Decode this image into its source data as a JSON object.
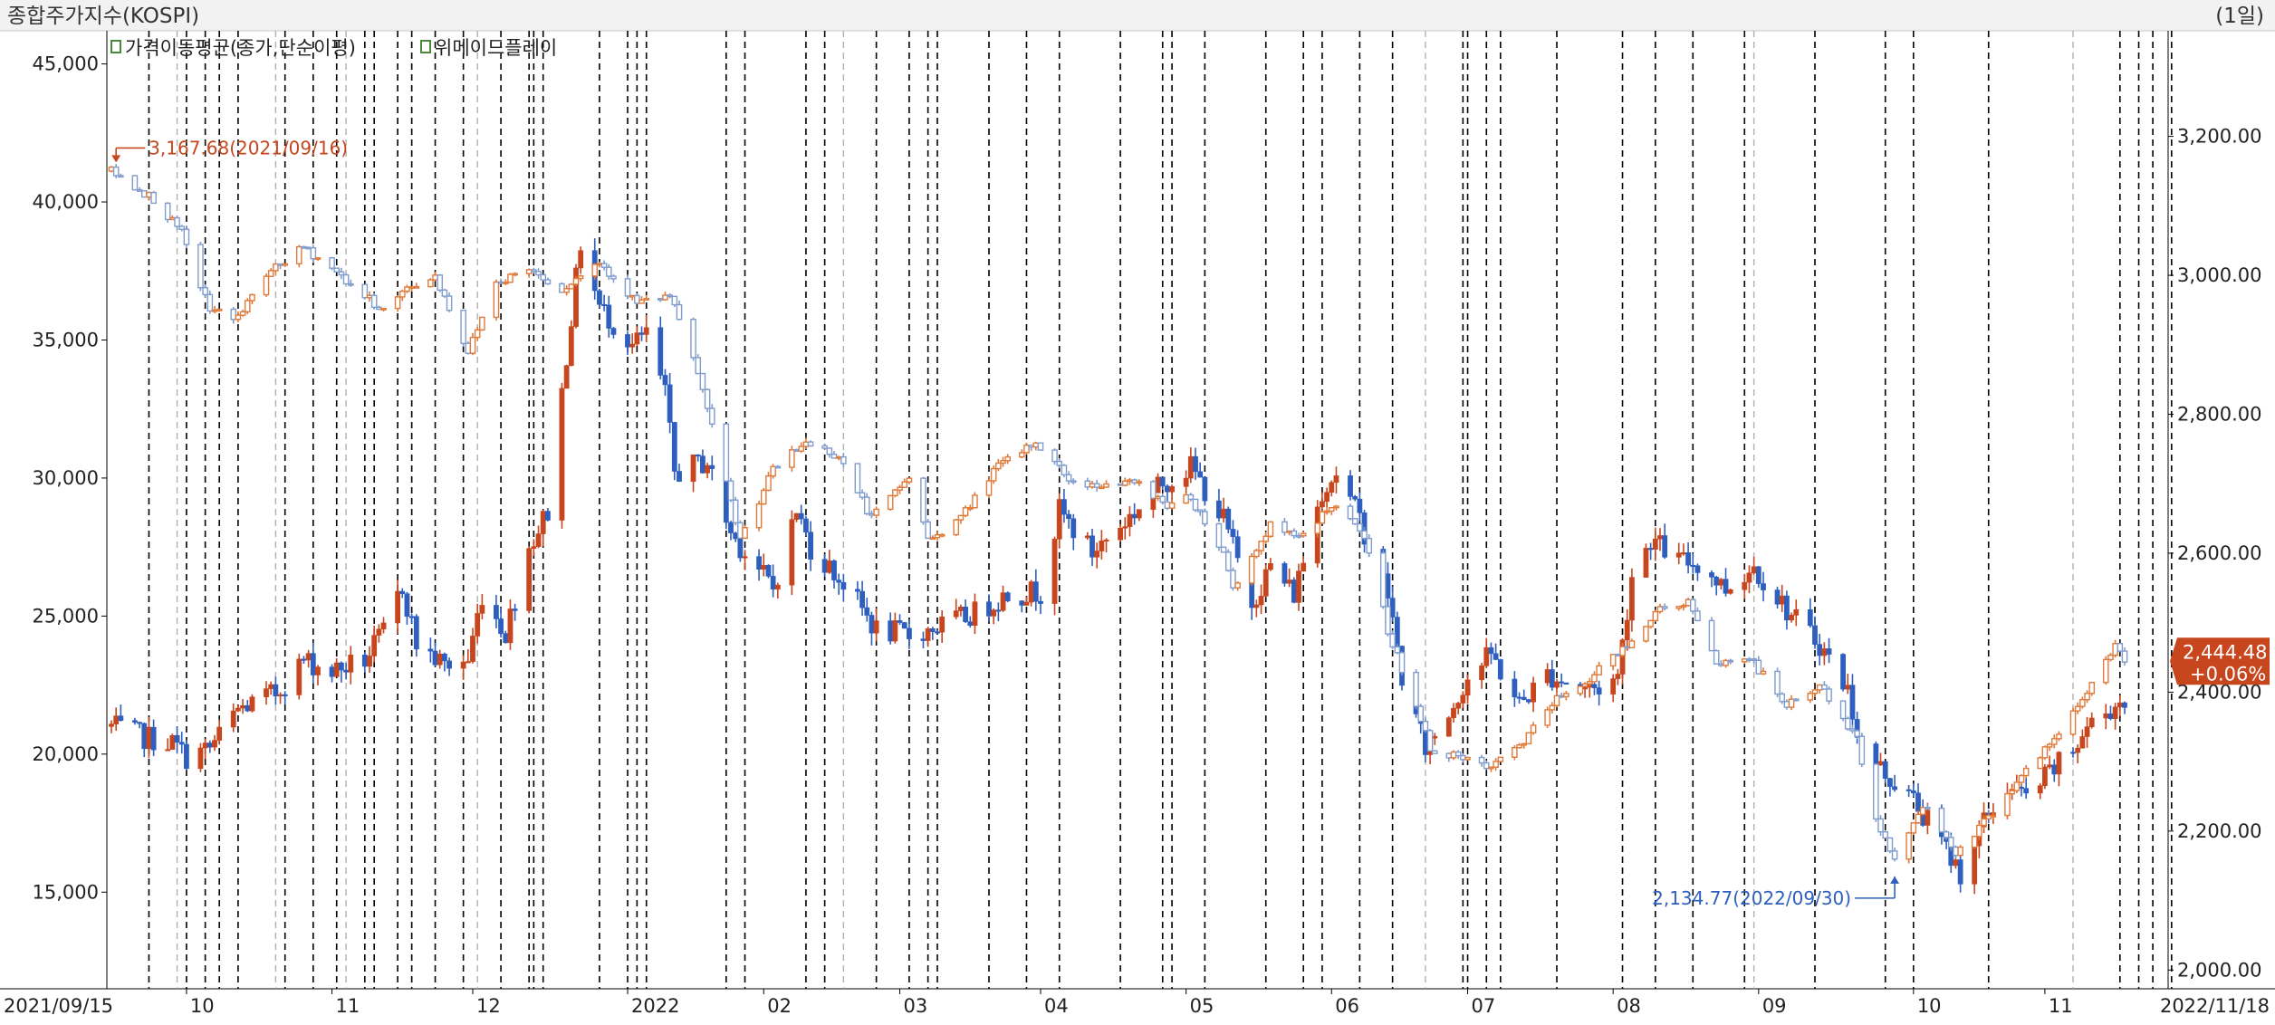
{
  "header": {
    "title": "종합주가지수(KOSPI)",
    "period": "(1일)"
  },
  "legend": [
    {
      "label": "가격이동평균(종가,단순이평)",
      "color": "#4a8a3a",
      "icon": "legend-square-icon"
    },
    {
      "label": "위메이드플레이",
      "color": "#4a8a3a",
      "icon": "legend-square-icon"
    }
  ],
  "colors": {
    "up": "#c8461e",
    "down": "#2e5fbf",
    "up_hollow": "#e07a3a",
    "down_hollow": "#7f9ccc",
    "vline_dark": "#000000",
    "vline_light": "#b0b0b0",
    "annotation_max": "#c8461e",
    "annotation_min": "#2e5fbf",
    "badge_bg": "#c8461e"
  },
  "chart_data": {
    "type": "candlestick",
    "x_start_label": "2021/09/15",
    "x_end_label": "2022/11/18",
    "month_ticks": [
      {
        "label": "10",
        "date": "2021-10-01"
      },
      {
        "label": "11",
        "date": "2021-11-01"
      },
      {
        "label": "12",
        "date": "2021-12-01"
      },
      {
        "label": "2022",
        "date": "2022-01-03"
      },
      {
        "label": "02",
        "date": "2022-02-01"
      },
      {
        "label": "03",
        "date": "2022-03-02"
      },
      {
        "label": "04",
        "date": "2022-04-01"
      },
      {
        "label": "05",
        "date": "2022-05-02"
      },
      {
        "label": "06",
        "date": "2022-06-02"
      },
      {
        "label": "07",
        "date": "2022-07-01"
      },
      {
        "label": "08",
        "date": "2022-08-01"
      },
      {
        "label": "09",
        "date": "2022-09-01"
      },
      {
        "label": "10",
        "date": "2022-10-04"
      },
      {
        "label": "11",
        "date": "2022-11-01"
      }
    ],
    "left_axis": {
      "ticks": [
        "45,000",
        "40,000",
        "35,000",
        "30,000",
        "25,000",
        "20,000",
        "15,000"
      ],
      "values": [
        45000,
        40000,
        35000,
        30000,
        25000,
        20000,
        15000
      ],
      "ylim": [
        11500,
        46200
      ]
    },
    "right_axis": {
      "ticks": [
        "3,200.00",
        "3,000.00",
        "2,800.00",
        "2,600.00",
        "2,400.00",
        "2,200.00",
        "2,000.00"
      ],
      "values": [
        3200,
        3000,
        2800,
        2600,
        2400,
        2200,
        2000
      ],
      "ylim": [
        1973,
        3352
      ]
    },
    "series": [
      {
        "name": "위메이드플레이",
        "axis": "left",
        "style": "solid candles",
        "waypoints": [
          [
            "2021-09-15",
            21000
          ],
          [
            "2021-09-20",
            20700
          ],
          [
            "2021-09-28",
            20400
          ],
          [
            "2021-10-01",
            19900
          ],
          [
            "2021-10-06",
            20200
          ],
          [
            "2021-10-12",
            21600
          ],
          [
            "2021-10-20",
            22200
          ],
          [
            "2021-10-26",
            23400
          ],
          [
            "2021-11-01",
            23000
          ],
          [
            "2021-11-08",
            23400
          ],
          [
            "2021-11-12",
            24400
          ],
          [
            "2021-11-16",
            26100
          ],
          [
            "2021-11-19",
            24000
          ],
          [
            "2021-11-25",
            23200
          ],
          [
            "2021-11-30",
            23400
          ],
          [
            "2021-12-03",
            25800
          ],
          [
            "2021-12-08",
            24400
          ],
          [
            "2021-12-13",
            27500
          ],
          [
            "2021-12-17",
            28800
          ],
          [
            "2021-12-21",
            34500
          ],
          [
            "2021-12-24",
            38500
          ],
          [
            "2021-12-28",
            36200
          ],
          [
            "2022-01-04",
            34800
          ],
          [
            "2022-01-07",
            35200
          ],
          [
            "2022-01-11",
            33000
          ],
          [
            "2022-01-13",
            30200
          ],
          [
            "2022-01-20",
            30600
          ],
          [
            "2022-01-25",
            28000
          ],
          [
            "2022-02-03",
            26000
          ],
          [
            "2022-02-08",
            28800
          ],
          [
            "2022-02-11",
            27500
          ],
          [
            "2022-02-18",
            26200
          ],
          [
            "2022-02-25",
            24500
          ],
          [
            "2022-03-04",
            24300
          ],
          [
            "2022-03-10",
            24600
          ],
          [
            "2022-03-18",
            25100
          ],
          [
            "2022-03-25",
            25800
          ],
          [
            "2022-04-01",
            25900
          ],
          [
            "2022-04-05",
            28800
          ],
          [
            "2022-04-12",
            27300
          ],
          [
            "2022-04-20",
            28600
          ],
          [
            "2022-04-27",
            29800
          ],
          [
            "2022-05-03",
            30400
          ],
          [
            "2022-05-10",
            28500
          ],
          [
            "2022-05-16",
            25500
          ],
          [
            "2022-05-20",
            26800
          ],
          [
            "2022-05-25",
            25800
          ],
          [
            "2022-05-31",
            29600
          ],
          [
            "2022-06-03",
            30200
          ],
          [
            "2022-06-08",
            28500
          ],
          [
            "2022-06-14",
            25800
          ],
          [
            "2022-06-17",
            22800
          ],
          [
            "2022-06-22",
            20200
          ],
          [
            "2022-06-27",
            21500
          ],
          [
            "2022-07-01",
            22800
          ],
          [
            "2022-07-06",
            23600
          ],
          [
            "2022-07-12",
            21800
          ],
          [
            "2022-07-18",
            22900
          ],
          [
            "2022-07-25",
            22400
          ],
          [
            "2022-07-29",
            22400
          ],
          [
            "2022-08-02",
            22800
          ],
          [
            "2022-08-05",
            26500
          ],
          [
            "2022-08-09",
            27800
          ],
          [
            "2022-08-15",
            27000
          ],
          [
            "2022-08-19",
            26900
          ],
          [
            "2022-08-25",
            26000
          ],
          [
            "2022-08-31",
            26800
          ],
          [
            "2022-09-05",
            25700
          ],
          [
            "2022-09-08",
            25000
          ],
          [
            "2022-09-14",
            24000
          ],
          [
            "2022-09-20",
            22300
          ],
          [
            "2022-09-23",
            20200
          ],
          [
            "2022-09-28",
            19300
          ],
          [
            "2022-10-04",
            18300
          ],
          [
            "2022-10-10",
            16800
          ],
          [
            "2022-10-14",
            15700
          ],
          [
            "2022-10-19",
            17500
          ],
          [
            "2022-10-24",
            18800
          ],
          [
            "2022-10-28",
            18400
          ],
          [
            "2022-11-02",
            19300
          ],
          [
            "2022-11-07",
            20100
          ],
          [
            "2022-11-10",
            21000
          ],
          [
            "2022-11-14",
            21500
          ],
          [
            "2022-11-16",
            21800
          ],
          [
            "2022-11-18",
            22000
          ]
        ]
      },
      {
        "name": "종합주가지수(KOSPI)",
        "axis": "right",
        "style": "hollow candles",
        "waypoints": [
          [
            "2021-09-15",
            3150
          ],
          [
            "2021-09-24",
            3110
          ],
          [
            "2021-09-30",
            3060
          ],
          [
            "2021-10-06",
            2950
          ],
          [
            "2021-10-12",
            2940
          ],
          [
            "2021-10-18",
            3000
          ],
          [
            "2021-10-26",
            3040
          ],
          [
            "2021-11-01",
            3010
          ],
          [
            "2021-11-08",
            2970
          ],
          [
            "2021-11-12",
            2950
          ],
          [
            "2021-11-17",
            2980
          ],
          [
            "2021-11-23",
            3000
          ],
          [
            "2021-11-30",
            2890
          ],
          [
            "2021-12-06",
            2990
          ],
          [
            "2021-12-13",
            3010
          ],
          [
            "2021-12-20",
            2980
          ],
          [
            "2021-12-28",
            3020
          ],
          [
            "2022-01-05",
            2960
          ],
          [
            "2022-01-12",
            2970
          ],
          [
            "2022-01-18",
            2860
          ],
          [
            "2022-01-27",
            2620
          ],
          [
            "2022-02-03",
            2720
          ],
          [
            "2022-02-10",
            2760
          ],
          [
            "2022-02-17",
            2740
          ],
          [
            "2022-02-24",
            2650
          ],
          [
            "2022-03-04",
            2710
          ],
          [
            "2022-03-08",
            2620
          ],
          [
            "2022-03-15",
            2650
          ],
          [
            "2022-03-22",
            2720
          ],
          [
            "2022-03-31",
            2760
          ],
          [
            "2022-04-08",
            2700
          ],
          [
            "2022-04-15",
            2700
          ],
          [
            "2022-04-22",
            2700
          ],
          [
            "2022-04-28",
            2670
          ],
          [
            "2022-05-03",
            2680
          ],
          [
            "2022-05-10",
            2600
          ],
          [
            "2022-05-12",
            2550
          ],
          [
            "2022-05-20",
            2640
          ],
          [
            "2022-05-26",
            2620
          ],
          [
            "2022-06-02",
            2670
          ],
          [
            "2022-06-09",
            2625
          ],
          [
            "2022-06-14",
            2490
          ],
          [
            "2022-06-23",
            2320
          ],
          [
            "2022-07-01",
            2300
          ],
          [
            "2022-07-06",
            2290
          ],
          [
            "2022-07-13",
            2330
          ],
          [
            "2022-07-20",
            2390
          ],
          [
            "2022-07-27",
            2420
          ],
          [
            "2022-08-04",
            2470
          ],
          [
            "2022-08-11",
            2520
          ],
          [
            "2022-08-17",
            2530
          ],
          [
            "2022-08-23",
            2440
          ],
          [
            "2022-08-30",
            2450
          ],
          [
            "2022-09-07",
            2380
          ],
          [
            "2022-09-14",
            2410
          ],
          [
            "2022-09-22",
            2330
          ],
          [
            "2022-09-26",
            2220
          ],
          [
            "2022-09-30",
            2155
          ],
          [
            "2022-10-06",
            2240
          ],
          [
            "2022-10-13",
            2170
          ],
          [
            "2022-10-20",
            2220
          ],
          [
            "2022-10-27",
            2280
          ],
          [
            "2022-11-03",
            2330
          ],
          [
            "2022-11-10",
            2400
          ],
          [
            "2022-11-16",
            2470
          ],
          [
            "2022-11-18",
            2444
          ]
        ]
      }
    ],
    "annotations": {
      "max": {
        "text": "3,167.68(2021/09/16)",
        "date": "2021-09-16",
        "value": 3167.68
      },
      "min": {
        "text": "2,134.77(2022/09/30)",
        "date": "2022-09-30",
        "value": 2134.77
      }
    },
    "last_value": {
      "price": "2,444.48",
      "change": "+0.06%",
      "value": 2444.48
    },
    "event_lines": {
      "dark": [
        "2021-09-23",
        "2021-10-01",
        "2021-10-05",
        "2021-10-08",
        "2021-10-12",
        "2021-10-22",
        "2021-10-28",
        "2021-11-02",
        "2021-11-08",
        "2021-11-10",
        "2021-11-15",
        "2021-11-18",
        "2021-11-23",
        "2021-11-29",
        "2021-12-07",
        "2021-12-13",
        "2021-12-14",
        "2021-12-16",
        "2021-12-28",
        "2022-01-03",
        "2022-01-05",
        "2022-01-07",
        "2022-01-24",
        "2022-01-28",
        "2022-02-10",
        "2022-02-14",
        "2022-02-25",
        "2022-03-04",
        "2022-03-08",
        "2022-03-10",
        "2022-03-21",
        "2022-03-29",
        "2022-04-05",
        "2022-04-18",
        "2022-04-27",
        "2022-04-29",
        "2022-05-06",
        "2022-05-19",
        "2022-05-27",
        "2022-05-31",
        "2022-06-08",
        "2022-06-15",
        "2022-06-30",
        "2022-07-01",
        "2022-07-05",
        "2022-07-08",
        "2022-07-20",
        "2022-08-03",
        "2022-08-10",
        "2022-08-18",
        "2022-08-29",
        "2022-09-13",
        "2022-09-28",
        "2022-10-04",
        "2022-10-20",
        "2022-11-17",
        "2022-11-21",
        "2022-11-24",
        "2022-11-28"
      ],
      "light": [
        "2021-09-29",
        "2021-10-20",
        "2021-11-04",
        "2021-12-02",
        "2022-02-18",
        "2022-06-22",
        "2022-08-31",
        "2022-11-07"
      ]
    }
  }
}
